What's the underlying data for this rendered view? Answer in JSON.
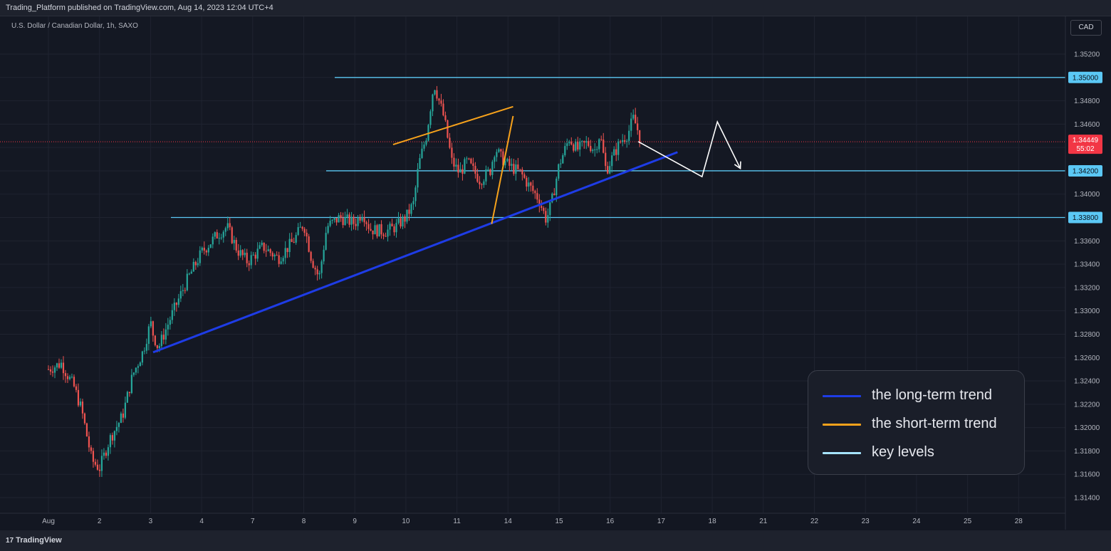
{
  "header": {
    "publish_info": "Trading_Platform published on TradingView.com, Aug 14, 2023 12:04 UTC+4"
  },
  "chart": {
    "symbol_title": "U.S. Dollar / Canadian Dollar, 1h, SAXO",
    "currency_button": "CAD"
  },
  "footer": {
    "logo_mark": "17",
    "logo_text": "TradingView"
  },
  "colors": {
    "background": "#131722",
    "up": "#26a69a",
    "down": "#ef5350",
    "long_trend": "#1e3ce6",
    "short_trend": "#f7a21b",
    "key_level": "#5bc8f5",
    "projection": "#ffffff",
    "price_label": "#f23645"
  },
  "chart_data": {
    "type": "candlestick",
    "symbol": "U.S. Dollar / Canadian Dollar",
    "interval": "1h",
    "ylim": [
      1.313,
      1.3545
    ],
    "y_ticks": [
      "1.31400",
      "1.31600",
      "1.31800",
      "1.32000",
      "1.32200",
      "1.32400",
      "1.32600",
      "1.32800",
      "1.33000",
      "1.33200",
      "1.33400",
      "1.33600",
      "1.33800",
      "1.34000",
      "1.34200",
      "1.34400",
      "1.34600",
      "1.34800",
      "1.35000",
      "1.35200"
    ],
    "x_ticks": [
      "Aug",
      "2",
      "3",
      "4",
      "7",
      "8",
      "9",
      "10",
      "11",
      "14",
      "15",
      "16",
      "17",
      "18",
      "21",
      "22",
      "23",
      "24",
      "25",
      "28"
    ],
    "current_price": {
      "value": "1.34449",
      "countdown": "55:02"
    },
    "key_levels": [
      {
        "label": "1.35000",
        "value": 1.35
      },
      {
        "label": "1.34200",
        "value": 1.342
      },
      {
        "label": "1.33800",
        "value": 1.338
      }
    ],
    "close_path": [
      [
        0,
        1.325
      ],
      [
        0.25,
        1.3255
      ],
      [
        0.5,
        1.3235
      ],
      [
        0.65,
        1.3215
      ],
      [
        0.85,
        1.3172
      ],
      [
        1.0,
        1.3165
      ],
      [
        1.2,
        1.319
      ],
      [
        1.45,
        1.321
      ],
      [
        1.65,
        1.3245
      ],
      [
        1.85,
        1.3265
      ],
      [
        2.0,
        1.329
      ],
      [
        2.05,
        1.328
      ],
      [
        2.15,
        1.3268
      ],
      [
        2.4,
        1.3295
      ],
      [
        2.7,
        1.3325
      ],
      [
        3.0,
        1.335
      ],
      [
        3.3,
        1.3365
      ],
      [
        3.5,
        1.3372
      ],
      [
        3.7,
        1.3352
      ],
      [
        3.9,
        1.3342
      ],
      [
        4.2,
        1.3355
      ],
      [
        4.5,
        1.3345
      ],
      [
        4.8,
        1.336
      ],
      [
        5.0,
        1.3375
      ],
      [
        5.15,
        1.3345
      ],
      [
        5.3,
        1.3328
      ],
      [
        5.45,
        1.3372
      ],
      [
        5.7,
        1.338
      ],
      [
        6.0,
        1.3375
      ],
      [
        6.15,
        1.3385
      ],
      [
        6.3,
        1.337
      ],
      [
        6.6,
        1.3368
      ],
      [
        6.8,
        1.3372
      ],
      [
        7.0,
        1.338
      ],
      [
        7.15,
        1.3392
      ],
      [
        7.25,
        1.3425
      ],
      [
        7.4,
        1.345
      ],
      [
        7.55,
        1.3495
      ],
      [
        7.75,
        1.3465
      ],
      [
        7.9,
        1.3428
      ],
      [
        8.05,
        1.3418
      ],
      [
        8.2,
        1.3428
      ],
      [
        8.45,
        1.3412
      ],
      [
        8.65,
        1.342
      ],
      [
        8.75,
        1.344
      ],
      [
        8.85,
        1.3432
      ],
      [
        9.0,
        1.3425
      ],
      [
        9.25,
        1.3418
      ],
      [
        9.4,
        1.3408
      ],
      [
        9.6,
        1.3396
      ],
      [
        9.75,
        1.3378
      ],
      [
        9.85,
        1.3392
      ],
      [
        10.0,
        1.3425
      ],
      [
        10.2,
        1.3448
      ],
      [
        10.35,
        1.3438
      ],
      [
        10.55,
        1.3444
      ],
      [
        10.7,
        1.3438
      ],
      [
        10.8,
        1.3452
      ],
      [
        10.92,
        1.342
      ],
      [
        11.05,
        1.3432
      ],
      [
        11.2,
        1.3445
      ],
      [
        11.35,
        1.3452
      ],
      [
        11.45,
        1.3465
      ],
      [
        11.52,
        1.3458
      ],
      [
        11.6,
        1.3445
      ]
    ],
    "drawings": {
      "long_term_trend": {
        "from": [
          2.05,
          1.32645
        ],
        "to": [
          12.32,
          1.3436
        ]
      },
      "short_term_upper": {
        "from": [
          6.75,
          1.34425
        ],
        "to": [
          9.1,
          1.3475
        ]
      },
      "short_term_lower": {
        "from": [
          8.68,
          1.33745
        ],
        "to": [
          9.1,
          1.3467
        ]
      },
      "projection": [
        [
          11.55,
          1.3445
        ],
        [
          12.8,
          1.3415
        ],
        [
          13.1,
          1.3462
        ],
        [
          13.55,
          1.3422
        ]
      ]
    },
    "legend": {
      "position": "bottom-right",
      "items": [
        {
          "label": "the long-term trend",
          "color": "#1e3ce6"
        },
        {
          "label": "the short-term trend",
          "color": "#f7a21b"
        },
        {
          "label": "key levels",
          "color": "#a6e4ff"
        }
      ]
    }
  }
}
